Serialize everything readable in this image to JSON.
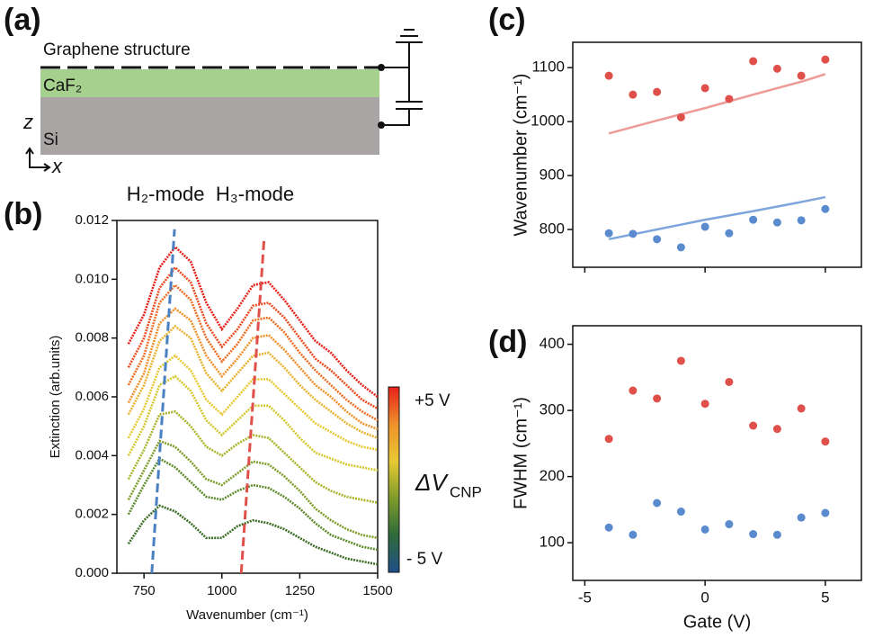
{
  "diagram": {
    "label": "(a)",
    "title": "Graphene structure",
    "layers": [
      "CaF₂",
      "Si"
    ],
    "axes": [
      "z",
      "x"
    ]
  },
  "chart_data": [
    {
      "type": "line",
      "panel_label": "(b)",
      "xlabel": "Wavenumber (cm⁻¹)",
      "ylabel": "Extinction (arb.units)",
      "xlim": [
        663,
        1500
      ],
      "ylim": [
        0,
        0.012
      ],
      "xticks": [
        750,
        1000,
        1250,
        1500
      ],
      "yticks": [
        {
          "value": 0,
          "label": "0.000"
        },
        {
          "value": 0.002,
          "label": "0.002"
        },
        {
          "value": 0.004,
          "label": "0.004"
        },
        {
          "value": 0.006,
          "label": "0.006"
        },
        {
          "value": 0.008,
          "label": "0.008"
        },
        {
          "value": 0.01,
          "label": "0.010"
        },
        {
          "value": 0.012,
          "label": "0.012"
        }
      ],
      "x": [
        700,
        750,
        800,
        850,
        900,
        950,
        1000,
        1050,
        1100,
        1150,
        1200,
        1250,
        1300,
        1350,
        1400,
        1450,
        1500
      ],
      "series": [
        {
          "color": "#e8201a",
          "values": [
            0.0078,
            0.0088,
            0.0104,
            0.0111,
            0.0106,
            0.0092,
            0.0083,
            0.009,
            0.0098,
            0.0099,
            0.0093,
            0.0086,
            0.0079,
            0.0075,
            0.0069,
            0.0064,
            0.006
          ]
        },
        {
          "color": "#ec4a1e",
          "values": [
            0.007,
            0.008,
            0.0097,
            0.0104,
            0.0099,
            0.0085,
            0.0077,
            0.0083,
            0.0091,
            0.0092,
            0.0087,
            0.008,
            0.0073,
            0.0069,
            0.0064,
            0.0059,
            0.0056
          ]
        },
        {
          "color": "#ef6d22",
          "values": [
            0.0064,
            0.0074,
            0.0092,
            0.0098,
            0.0093,
            0.008,
            0.0072,
            0.0078,
            0.0086,
            0.0087,
            0.0082,
            0.0075,
            0.0069,
            0.0064,
            0.0059,
            0.0055,
            0.0052
          ]
        },
        {
          "color": "#f0902a",
          "values": [
            0.0058,
            0.0068,
            0.0085,
            0.009,
            0.0086,
            0.0074,
            0.0067,
            0.0073,
            0.008,
            0.0081,
            0.0076,
            0.007,
            0.0064,
            0.006,
            0.0055,
            0.0051,
            0.0049
          ]
        },
        {
          "color": "#e9b22f",
          "values": [
            0.0054,
            0.0064,
            0.0079,
            0.0084,
            0.008,
            0.0068,
            0.0062,
            0.0068,
            0.0074,
            0.0075,
            0.007,
            0.0064,
            0.0059,
            0.0055,
            0.0051,
            0.0048,
            0.0046
          ]
        },
        {
          "color": "#e7c933",
          "values": [
            0.0046,
            0.0056,
            0.007,
            0.0074,
            0.0069,
            0.0059,
            0.0054,
            0.006,
            0.0066,
            0.0066,
            0.0061,
            0.0056,
            0.0051,
            0.0048,
            0.0045,
            0.0043,
            0.0042
          ]
        },
        {
          "color": "#d3c72e",
          "values": [
            0.004,
            0.005,
            0.0064,
            0.0067,
            0.0062,
            0.0052,
            0.0047,
            0.0052,
            0.0057,
            0.0057,
            0.0052,
            0.0046,
            0.0041,
            0.0039,
            0.0037,
            0.0036,
            0.0035
          ]
        },
        {
          "color": "#a9b42a",
          "values": [
            0.0032,
            0.0042,
            0.0054,
            0.0055,
            0.005,
            0.0043,
            0.004,
            0.0044,
            0.0047,
            0.0046,
            0.0041,
            0.0036,
            0.0031,
            0.0028,
            0.0026,
            0.0025,
            0.0024
          ]
        },
        {
          "color": "#7f9c2a",
          "values": [
            0.0025,
            0.0035,
            0.0045,
            0.0043,
            0.0038,
            0.0032,
            0.003,
            0.0034,
            0.0038,
            0.0037,
            0.0033,
            0.0028,
            0.0022,
            0.0018,
            0.0015,
            0.0013,
            0.0012
          ]
        },
        {
          "color": "#5d8a2a",
          "values": [
            0.002,
            0.003,
            0.0039,
            0.0036,
            0.0031,
            0.0026,
            0.0025,
            0.0028,
            0.003,
            0.0029,
            0.0026,
            0.0022,
            0.0017,
            0.0013,
            0.0011,
            0.0009,
            0.0008
          ]
        },
        {
          "color": "#3b6b24",
          "values": [
            0.001,
            0.0018,
            0.0023,
            0.0021,
            0.0017,
            0.0012,
            0.0012,
            0.0016,
            0.0018,
            0.0017,
            0.0015,
            0.0012,
            0.0009,
            0.0007,
            0.0005,
            0.0004,
            0.0003
          ]
        }
      ],
      "annotations": [
        {
          "text": "H₂-mode",
          "color": "#4a7fc1",
          "x": [
            775,
            848
          ],
          "y": [
            0,
            0.0117
          ]
        },
        {
          "text": "H₃-mode",
          "color": "#e0504a",
          "x": [
            1062,
            1135
          ],
          "y": [
            0,
            0.0113
          ]
        }
      ],
      "colorbar": {
        "colors": [
          "#e8201a",
          "#f0902a",
          "#e7c933",
          "#7f9c2a",
          "#2f6a3a",
          "#1f4f8a"
        ],
        "top_label": "+5 V",
        "bottom_label": "- 5 V",
        "label": "ΔV",
        "label_sub": "CNP"
      }
    },
    {
      "type": "scatter",
      "panel_label": "(c)",
      "ylabel": "Wavenumber (cm⁻¹)",
      "xtick_labels": false,
      "xlim": [
        -5.5,
        6.5
      ],
      "ylim": [
        730,
        1147
      ],
      "xticks": [
        -5,
        0,
        5
      ],
      "yticks": [
        800,
        900,
        1000,
        1100
      ],
      "x": [
        -4,
        -3,
        -2,
        -1,
        0,
        1,
        2,
        3,
        4,
        5
      ],
      "series": [
        {
          "color": "#e0504a",
          "values": [
            1085,
            1050,
            1055,
            1008,
            1062,
            1042,
            1112,
            1098,
            1085,
            1115
          ]
        },
        {
          "color": "#5b8bcf",
          "values": [
            793,
            792,
            782,
            767,
            805,
            793,
            818,
            813,
            817,
            838
          ]
        }
      ],
      "fits": [
        {
          "color": "#ee9a96",
          "x": [
            -4,
            -2,
            0,
            2,
            4,
            5
          ],
          "values": [
            978,
            1002,
            1025,
            1050,
            1074,
            1088
          ]
        },
        {
          "color": "#7fa6dc",
          "x": [
            -4,
            -2,
            0,
            2,
            4,
            5
          ],
          "values": [
            782,
            800,
            818,
            834,
            851,
            860
          ]
        }
      ]
    },
    {
      "type": "scatter",
      "panel_label": "(d)",
      "ylabel": "FWHM (cm⁻¹)",
      "xlabel": "Gate (V)",
      "xlim": [
        -5.5,
        6.5
      ],
      "ylim": [
        43,
        428
      ],
      "xticks": [
        -5,
        0,
        5
      ],
      "yticks": [
        100,
        200,
        300,
        400
      ],
      "x": [
        -4,
        -3,
        -2,
        -1,
        0,
        1,
        2,
        3,
        4,
        5
      ],
      "series": [
        {
          "color": "#e0504a",
          "values": [
            257,
            330,
            318,
            375,
            310,
            343,
            277,
            272,
            303,
            253
          ]
        },
        {
          "color": "#5b8bcf",
          "values": [
            123,
            112,
            160,
            147,
            120,
            128,
            113,
            112,
            138,
            145
          ]
        }
      ]
    }
  ]
}
